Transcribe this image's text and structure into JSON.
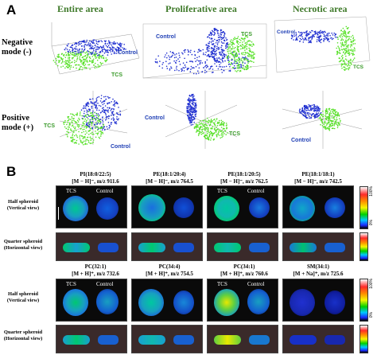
{
  "panel_a": {
    "letter": "A",
    "columns": [
      "Entire area",
      "Proliferative area",
      "Necrotic area"
    ],
    "rows": [
      {
        "line1": "Negative",
        "line2": "mode (-)"
      },
      {
        "line1": "Positive",
        "line2": "mode (+)"
      }
    ],
    "control_label": "Control",
    "tcs_label": "TCS",
    "colors": {
      "control": "#1f2fd0",
      "tcs": "#55e025",
      "heading": "#3f7a2a",
      "label_blue": "#1f3fb5",
      "label_green": "#3a9a2a"
    }
  },
  "panel_b": {
    "letter": "B",
    "half_label": "Half spheroid (Vertical view)",
    "quarter_label": "Quarter spheroid (Horizontal view)",
    "tcs_label": "TCS",
    "control_label": "Control",
    "colorbar_top": "100%",
    "colorbar_bottom": "0%",
    "top_row": [
      {
        "name": "PI(18:0/22:5)",
        "ion": "[M − H]⁻, m/z 911.6"
      },
      {
        "name": "PE(18:1/20:4)",
        "ion": "[M − H]⁻, m/z 764.5"
      },
      {
        "name": "PE(18:1/20:5)",
        "ion": "[M − H]⁻, m/z 762.5"
      },
      {
        "name": "PE(18:1/18:1)",
        "ion": "[M − H]⁻, m/z 742.5"
      }
    ],
    "bottom_row": [
      {
        "name": "PC(32:1)",
        "ion": "[M + H]⁺, m/z 732.6"
      },
      {
        "name": "PC(34:4)",
        "ion": "[M + H]⁺, m/z 754.5"
      },
      {
        "name": "PC(34:1)",
        "ion": "[M + H]⁺, m/z 760.6"
      },
      {
        "name": "SM(34:1)",
        "ion": "[M + Na]⁺, m/z 725.6"
      }
    ]
  }
}
